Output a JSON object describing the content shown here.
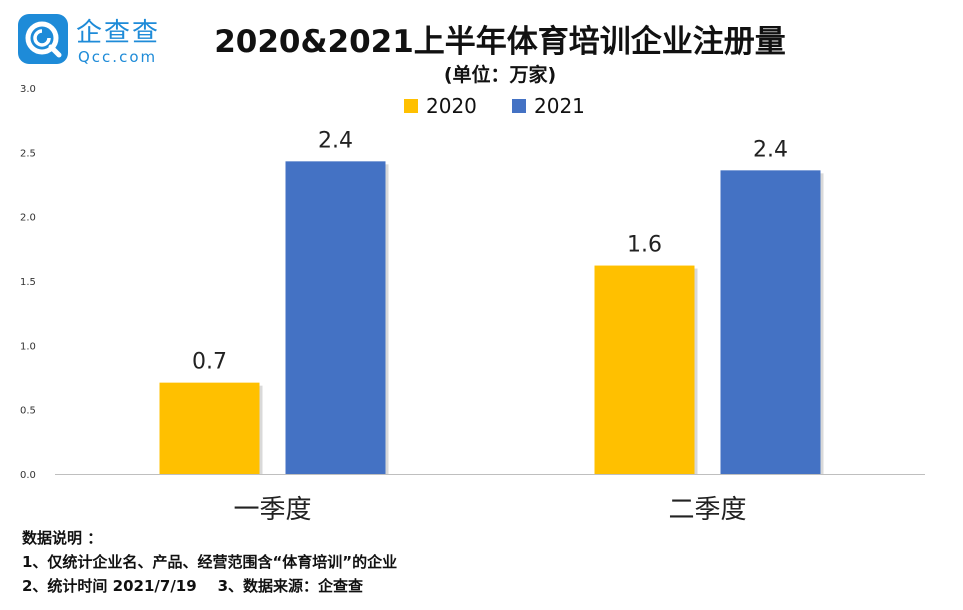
{
  "logo": {
    "name": "企查查",
    "domain": "Qcc.com"
  },
  "chart_data": {
    "type": "bar",
    "title": "2020&2021上半年体育培训企业注册量",
    "subtitle": "(单位：万家)",
    "categories": [
      "一季度",
      "二季度"
    ],
    "series": [
      {
        "name": "2020",
        "color": "#ffc000",
        "values": [
          0.7,
          1.6
        ]
      },
      {
        "name": "2021",
        "color": "#4472c4",
        "values": [
          2.4,
          2.4
        ]
      }
    ],
    "actual_values": [
      [
        0.71,
        1.62
      ],
      [
        2.43,
        2.36
      ]
    ],
    "yticks": [
      "0.0",
      "0.5",
      "1.0",
      "1.5",
      "2.0",
      "2.5",
      "3.0"
    ],
    "ylim": [
      0,
      3.0
    ],
    "legend": "top-center",
    "grid": false
  },
  "notes": {
    "heading": "数据说明 ：",
    "line1": "1、仅统计企业名、产品、经营范围含“体育培训”的企业",
    "line2": "2、统计时间 2021/7/19    3、数据来源：企查查"
  }
}
